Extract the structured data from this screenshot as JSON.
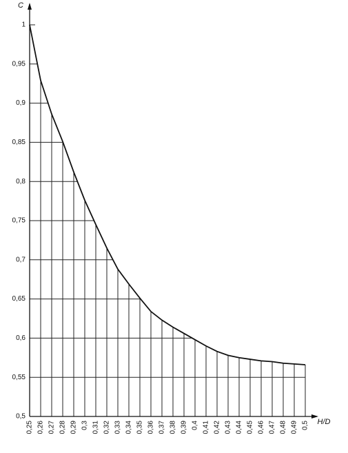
{
  "chart_data": {
    "type": "line",
    "x_label": "H/D",
    "y_label": "C",
    "x": [
      0.25,
      0.26,
      0.27,
      0.28,
      0.29,
      0.3,
      0.31,
      0.32,
      0.33,
      0.34,
      0.35,
      0.36,
      0.37,
      0.38,
      0.39,
      0.4,
      0.41,
      0.42,
      0.43,
      0.44,
      0.45,
      0.46,
      0.47,
      0.48,
      0.49,
      0.5
    ],
    "series": [
      {
        "color": "#111111",
        "values": [
          1.0,
          0.929,
          0.886,
          0.851,
          0.812,
          0.776,
          0.745,
          0.715,
          0.688,
          0.669,
          0.651,
          0.634,
          0.623,
          0.614,
          0.606,
          0.598,
          0.59,
          0.583,
          0.578,
          0.575,
          0.573,
          0.571,
          0.57,
          0.568,
          0.567,
          0.566
        ]
      }
    ],
    "xlim": [
      0.25,
      0.5
    ],
    "xticks": [
      {
        "value": 0.25,
        "label": "0,25"
      },
      {
        "value": 0.26,
        "label": "0,26"
      },
      {
        "value": 0.27,
        "label": "0,27"
      },
      {
        "value": 0.28,
        "label": "0,28"
      },
      {
        "value": 0.29,
        "label": "0,29"
      },
      {
        "value": 0.3,
        "label": "0,3"
      },
      {
        "value": 0.31,
        "label": "0,31"
      },
      {
        "value": 0.32,
        "label": "0,32"
      },
      {
        "value": 0.33,
        "label": "0,33"
      },
      {
        "value": 0.34,
        "label": "0,34"
      },
      {
        "value": 0.35,
        "label": "0,35"
      },
      {
        "value": 0.36,
        "label": "0,36"
      },
      {
        "value": 0.37,
        "label": "0,37"
      },
      {
        "value": 0.38,
        "label": "0,38"
      },
      {
        "value": 0.39,
        "label": "0,39"
      },
      {
        "value": 0.4,
        "label": "0,4"
      },
      {
        "value": 0.41,
        "label": "0,41"
      },
      {
        "value": 0.42,
        "label": "0,42"
      },
      {
        "value": 0.43,
        "label": "0,43"
      },
      {
        "value": 0.44,
        "label": "0,44"
      },
      {
        "value": 0.45,
        "label": "0,45"
      },
      {
        "value": 0.46,
        "label": "0,46"
      },
      {
        "value": 0.47,
        "label": "0,47"
      },
      {
        "value": 0.48,
        "label": "0,48"
      },
      {
        "value": 0.49,
        "label": "0,49"
      },
      {
        "value": 0.5,
        "label": "0,5"
      }
    ],
    "ylim": [
      0.5,
      1
    ],
    "yticks": [
      {
        "value": 0.5,
        "label": "0,5"
      },
      {
        "value": 0.55,
        "label": "0,55"
      },
      {
        "value": 0.6,
        "label": "0,6"
      },
      {
        "value": 0.65,
        "label": "0,65"
      },
      {
        "value": 0.7,
        "label": "0,7"
      },
      {
        "value": 0.75,
        "label": "0,75"
      },
      {
        "value": 0.8,
        "label": "0,8"
      },
      {
        "value": 0.85,
        "label": "0,85"
      },
      {
        "value": 0.9,
        "label": "0,9"
      },
      {
        "value": 0.95,
        "label": "0,95"
      },
      1
    ],
    "grid": true
  }
}
